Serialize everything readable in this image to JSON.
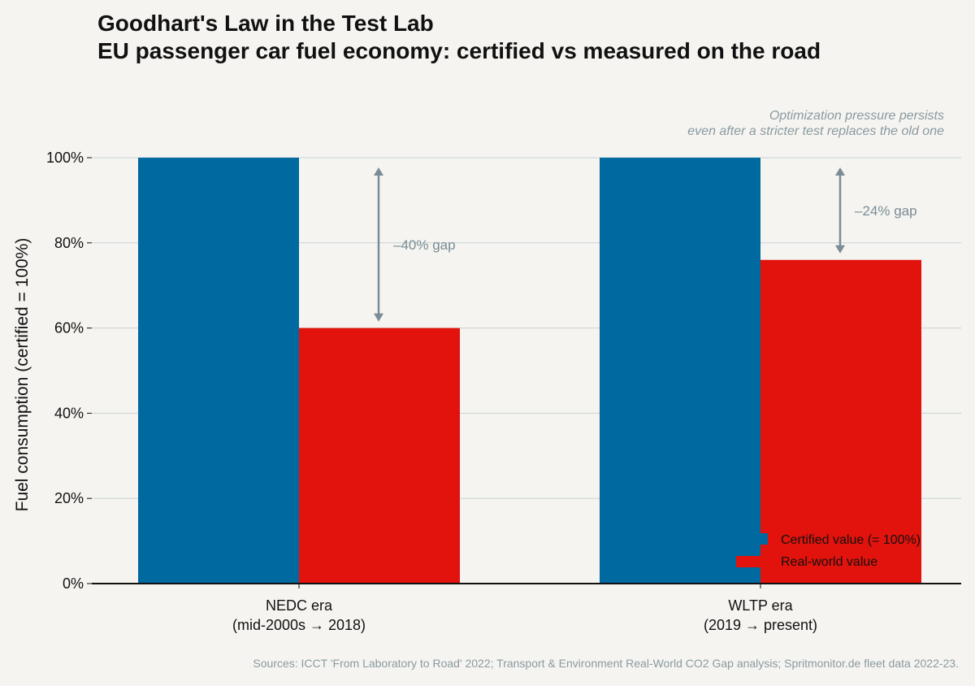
{
  "header": {
    "title_line1": "Goodhart's Law in the Test Lab",
    "title_line2": "EU passenger car fuel economy: certified vs measured on the road"
  },
  "annotation": {
    "line1": "Optimization pressure persists",
    "line2": "even after a stricter test replaces the old one"
  },
  "source": "Sources: ICCT 'From Laboratory to Road' 2022; Transport & Environment Real-World CO2 Gap analysis; Spritmonitor.de fleet data 2022-23.",
  "colors": {
    "certified": "#00699f",
    "real_world": "#e2120c",
    "arrow": "#7a8c96",
    "grid": "#c9d3d3",
    "background": "#f5f4f0"
  },
  "chart_data": {
    "type": "bar",
    "categories": [
      [
        "NEDC era",
        "(mid-2000s → 2018)"
      ],
      [
        "WLTP era",
        "(2019 → present)"
      ]
    ],
    "series": [
      {
        "name": "Certified value (= 100%)",
        "values": [
          100,
          100
        ]
      },
      {
        "name": "Real-world value",
        "values": [
          60,
          76
        ]
      }
    ],
    "gap_labels": [
      "–40% gap",
      "–24% gap"
    ],
    "xlabel": "",
    "ylabel": "Fuel consumption (certified = 100%)",
    "ylim": [
      0,
      100
    ],
    "yticks": [
      0,
      20,
      40,
      60,
      80,
      100
    ],
    "ytick_labels": [
      "0%",
      "20%",
      "40%",
      "60%",
      "80%",
      "100%"
    ],
    "grid": true,
    "legend_position": "bottom-right"
  }
}
